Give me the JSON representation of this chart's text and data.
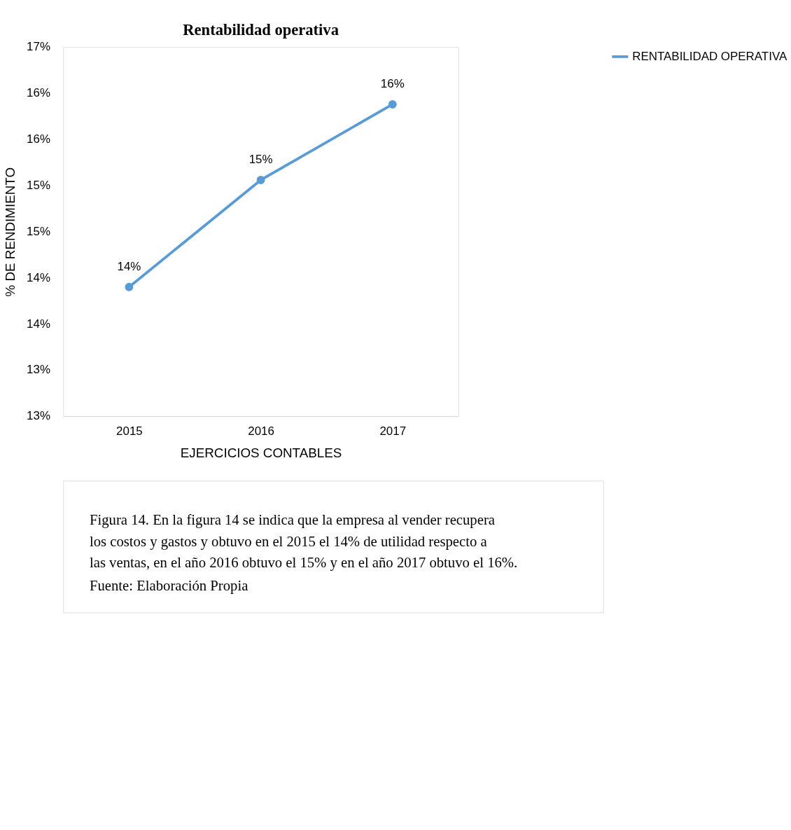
{
  "chart_data": {
    "type": "line",
    "title": "Rentabilidad operativa",
    "xlabel": "EJERCICIOS CONTABLES",
    "ylabel": "% DE RENDIMIENTO",
    "categories": [
      "2015",
      "2016",
      "2017"
    ],
    "series": [
      {
        "name": "RENTABILIDAD OPERATIVA",
        "color": "#5b9bd5",
        "values": [
          13.9,
          15.06,
          15.88
        ],
        "value_labels": [
          "14%",
          "15%",
          "16%"
        ]
      }
    ],
    "ylim": [
      12.5,
      16.5
    ],
    "yticks": [
      {
        "value": 12.5,
        "label": "13%"
      },
      {
        "value": 13,
        "label": "13%"
      },
      {
        "value": 13.5,
        "label": "14%"
      },
      {
        "value": 14,
        "label": "14%"
      },
      {
        "value": 14.5,
        "label": "15%"
      },
      {
        "value": 15,
        "label": "15%"
      },
      {
        "value": 15.5,
        "label": "16%"
      },
      {
        "value": 16,
        "label": "16%"
      },
      {
        "value": 16.5,
        "label": "17%"
      }
    ],
    "grid": false,
    "legend": "right",
    "marker": "circle",
    "line_style": "solid",
    "annotations": [
      "Figura 14. En la figura 14 se indica que la empresa al vender recupera los costos y gastos y obtuvo en el 2015 el 14% de utilidad respecto a las ventas, en el año 2016 obtuvo el 15% y en el año 2017 obtuvo el 16%.",
      "Fuente: Elaboración Propia"
    ]
  }
}
